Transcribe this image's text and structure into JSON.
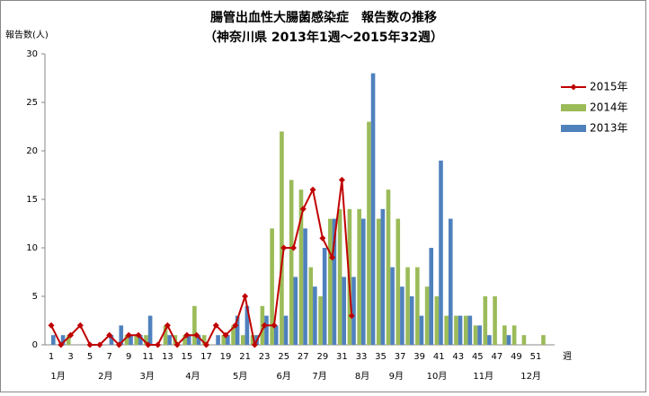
{
  "chart_data": {
    "type": "bar",
    "title": "腸管出血性大腸菌感染症　報告数の推移",
    "subtitle": "（神奈川県 2013年1週～2015年32週）",
    "y_label": "報告数(人)",
    "x_label": "週",
    "categories": [
      1,
      null,
      3,
      null,
      5,
      null,
      7,
      null,
      9,
      null,
      11,
      null,
      13,
      null,
      15,
      null,
      17,
      null,
      19,
      null,
      21,
      null,
      23,
      null,
      25,
      null,
      27,
      null,
      29,
      null,
      31,
      null,
      33,
      null,
      35,
      null,
      37,
      null,
      39,
      null,
      41,
      null,
      43,
      null,
      45,
      null,
      47,
      null,
      49,
      null,
      51,
      null
    ],
    "months": [
      "1月",
      "2月",
      "3月",
      "4月",
      "5月",
      "6月",
      "7月",
      "8月",
      "9月",
      "10月",
      "11月",
      "12月"
    ],
    "ylim": [
      0,
      30
    ],
    "yticks": [
      0,
      5,
      10,
      15,
      20,
      25,
      30
    ],
    "series": [
      {
        "name": "2015年",
        "type": "line",
        "color": "#c00000",
        "values": [
          2,
          0,
          1,
          2,
          0,
          0,
          1,
          0,
          1,
          1,
          0,
          0,
          2,
          0,
          1,
          1,
          0,
          2,
          1,
          2,
          5,
          0,
          2,
          2,
          10,
          10,
          14,
          16,
          11,
          9,
          17,
          3,
          null,
          null,
          null,
          null,
          null,
          null,
          null,
          null,
          null,
          null,
          null,
          null,
          null,
          null,
          null,
          null,
          null,
          null,
          null,
          null
        ]
      },
      {
        "name": "2014年",
        "type": "bar",
        "color": "#9bbb59",
        "values": [
          0,
          0,
          1,
          0,
          0,
          0,
          0,
          0,
          1,
          1,
          1,
          0,
          2,
          1,
          1,
          4,
          1,
          0,
          1,
          2,
          1,
          1,
          4,
          12,
          22,
          17,
          16,
          8,
          5,
          13,
          14,
          14,
          14,
          23,
          13,
          16,
          13,
          8,
          8,
          6,
          5,
          3,
          3,
          3,
          2,
          5,
          5,
          2,
          2,
          1,
          0,
          1
        ]
      },
      {
        "name": "2013年",
        "type": "bar",
        "color": "#4f81bd",
        "values": [
          1,
          1,
          0,
          0,
          0,
          0,
          1,
          2,
          1,
          1,
          3,
          0,
          1,
          0,
          1,
          1,
          0,
          1,
          1,
          3,
          4,
          1,
          3,
          2,
          3,
          7,
          12,
          6,
          10,
          13,
          7,
          7,
          13,
          28,
          14,
          8,
          6,
          5,
          3,
          10,
          19,
          13,
          3,
          3,
          2,
          1,
          0,
          1,
          0,
          0,
          0,
          0
        ]
      }
    ]
  }
}
